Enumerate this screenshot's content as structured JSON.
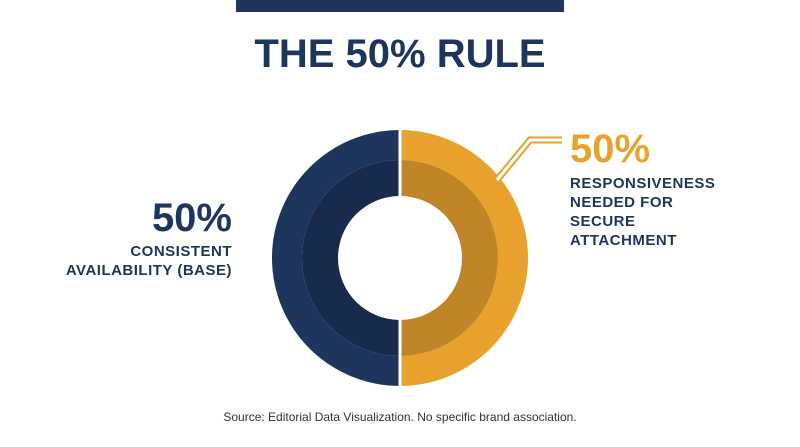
{
  "chart_data": {
    "type": "pie",
    "donut": true,
    "title": "THE 50% RULE",
    "series": [
      {
        "name": "CONSISTENT AVAILABILITY (BASE)",
        "color": "#1e355e",
        "values": [
          50
        ],
        "value_labels": [
          "50%"
        ]
      },
      {
        "name": "RESPONSIVENESS NEEDED FOR SECURE ATTACHMENT",
        "color": "#e9a22e",
        "values": [
          50
        ],
        "value_labels": [
          "50%"
        ]
      }
    ],
    "source": "Source: Editorial Data Visualization. No specific brand association."
  }
}
